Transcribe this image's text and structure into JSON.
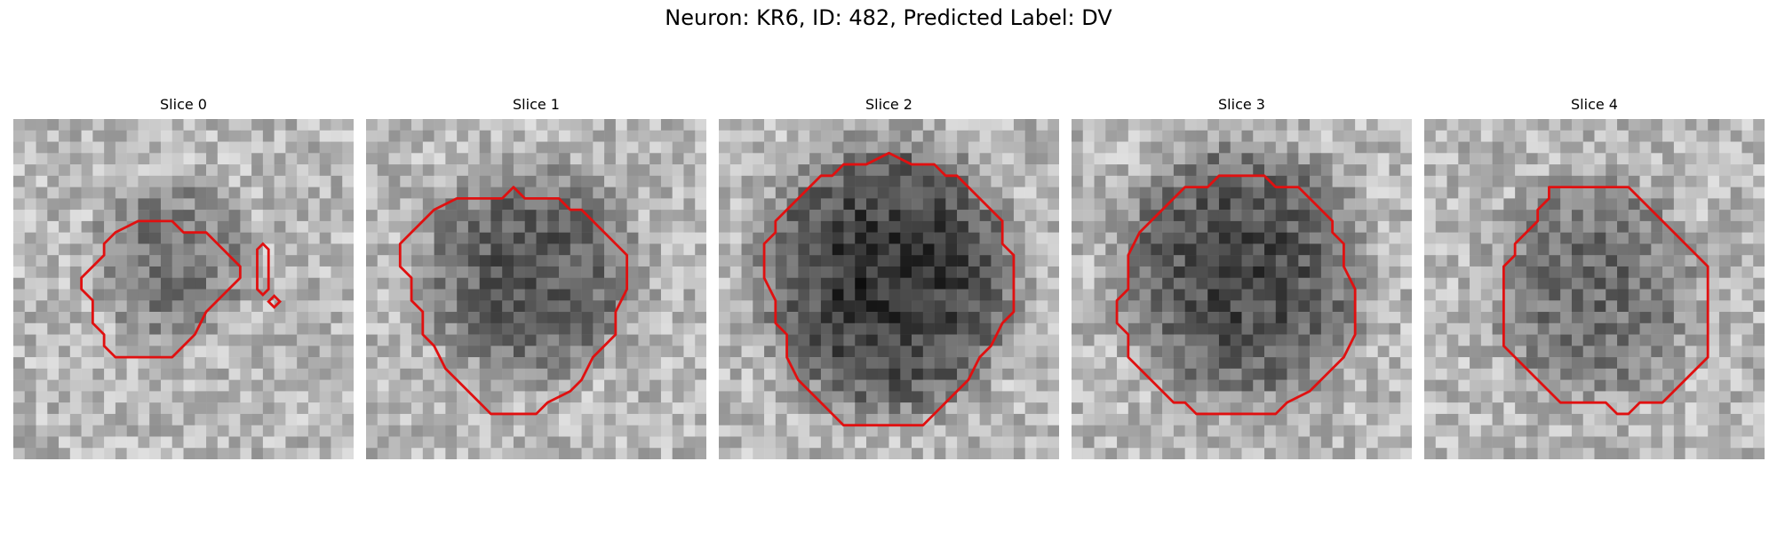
{
  "figure": {
    "title": "Neuron: KR6, ID: 482, Predicted Label: DV"
  },
  "panels": [
    {
      "title": "Slice 0",
      "blob_strength": 0.45,
      "overlay_color": "#e01010"
    },
    {
      "title": "Slice 1",
      "blob_strength": 0.65,
      "overlay_color": "#e01010"
    },
    {
      "title": "Slice 2",
      "blob_strength": 0.9,
      "overlay_color": "#e01010"
    },
    {
      "title": "Slice 3",
      "blob_strength": 0.75,
      "overlay_color": "#e01010"
    },
    {
      "title": "Slice 4",
      "blob_strength": 0.5,
      "overlay_color": "#e01010"
    }
  ]
}
